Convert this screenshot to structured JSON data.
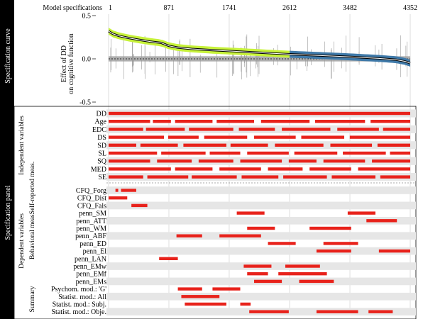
{
  "sidebar": {
    "top": "Specification curve",
    "bottom": "Specification panel"
  },
  "curve": {
    "top_axis_label": "Model specifications",
    "top_ticks": [
      "1",
      "871",
      "1741",
      "2612",
      "3482",
      "4352"
    ],
    "y_axis_label_line1": "Effect of DD",
    "y_axis_label_line2": "on cognitive function",
    "y_ticks": [
      "0.5",
      "0.0",
      "-0.5"
    ]
  },
  "panel": {
    "group_independent": "Independent variables",
    "group_dependent": "Dependent variables",
    "sub_selfreport": "Self-reported meas.",
    "sub_behavioral": "Behavioral meas.",
    "sub_summary": "Summary",
    "independent_labels": [
      "DD",
      "Age",
      "EDC",
      "DS",
      "SD",
      "SL",
      "SQ",
      "MED",
      "SE"
    ],
    "dependent_labels": [
      "CFQ_Forg",
      "CFQ_Dist",
      "CFQ_Fals",
      "penn_SM",
      "penn_ATT",
      "penn_WM",
      "penn_ABF",
      "penn_ED",
      "penn_El",
      "penn_LAN",
      "penn_EMw",
      "penn_EMf",
      "penn_EMs",
      "Psychom. mod.: 'G'",
      "Statist. mod.: All",
      "Statist. mod.: Subj.",
      "Statist. mod.: Obje."
    ]
  },
  "colors": {
    "marker": "#e8221b",
    "band_light": "#c7f23a",
    "band_dark": "#3f79a8",
    "null_band": "#a6a6a6",
    "sidebar": "#000000"
  },
  "chart_data": {
    "type": "line",
    "x_range": [
      1,
      4352
    ],
    "ylim": [
      -0.5,
      0.5
    ],
    "curve_x": [
      1,
      60,
      150,
      300,
      440,
      600,
      760,
      870,
      1000,
      1200,
      1500,
      1800,
      2100,
      2400,
      2700,
      3000,
      3300,
      3600,
      3900,
      4150,
      4280,
      4352
    ],
    "curve_y": [
      0.32,
      0.29,
      0.265,
      0.24,
      0.22,
      0.2,
      0.185,
      0.15,
      0.13,
      0.115,
      0.1,
      0.088,
      0.075,
      0.062,
      0.05,
      0.04,
      0.03,
      0.018,
      0.005,
      -0.01,
      -0.03,
      -0.05
    ],
    "ci_halfwidth": 0.04,
    "null_halfwidth": 0.03,
    "significance_switch_x": 2612,
    "independent_segments": [
      [
        [
          1,
          4352
        ]
      ],
      [
        [
          1,
          600
        ],
        [
          640,
          900
        ],
        [
          960,
          1500
        ],
        [
          1560,
          2100
        ],
        [
          2200,
          2900
        ],
        [
          2980,
          3700
        ],
        [
          3780,
          4352
        ]
      ],
      [
        [
          1,
          500
        ],
        [
          540,
          1100
        ],
        [
          1160,
          1800
        ],
        [
          1880,
          2400
        ],
        [
          2500,
          3200
        ],
        [
          3300,
          3900
        ],
        [
          3960,
          4352
        ]
      ],
      [
        [
          1,
          800
        ],
        [
          860,
          1300
        ],
        [
          1380,
          2000
        ],
        [
          2100,
          2700
        ],
        [
          2780,
          3400
        ],
        [
          3480,
          4352
        ]
      ],
      [
        [
          1,
          400
        ],
        [
          460,
          1000
        ],
        [
          1080,
          1700
        ],
        [
          1760,
          2300
        ],
        [
          2400,
          3100
        ],
        [
          3200,
          3800
        ],
        [
          3880,
          4352
        ]
      ],
      [
        [
          1,
          700
        ],
        [
          760,
          1400
        ],
        [
          1460,
          1900
        ],
        [
          2000,
          2600
        ],
        [
          2680,
          3300
        ],
        [
          3380,
          4000
        ],
        [
          4060,
          4352
        ]
      ],
      [
        [
          1,
          600
        ],
        [
          700,
          1200
        ],
        [
          1300,
          1800
        ],
        [
          1900,
          2500
        ],
        [
          2600,
          3000
        ],
        [
          3100,
          3700
        ],
        [
          3800,
          4352
        ]
      ],
      [
        [
          1,
          900
        ],
        [
          960,
          1500
        ],
        [
          1600,
          2200
        ],
        [
          2300,
          2800
        ],
        [
          2900,
          3500
        ],
        [
          3600,
          4352
        ]
      ],
      [
        [
          1,
          500
        ],
        [
          560,
          1150
        ],
        [
          1200,
          1850
        ],
        [
          1920,
          2450
        ],
        [
          2520,
          3150
        ],
        [
          3220,
          3850
        ],
        [
          3920,
          4352
        ]
      ]
    ],
    "dependent_segments": [
      [
        [
          100,
          140
        ],
        [
          180,
          400
        ]
      ],
      [
        [
          1,
          270
        ]
      ],
      [
        [
          330,
          560
        ]
      ],
      [
        [
          1850,
          2250
        ],
        [
          3450,
          3850
        ]
      ],
      [
        [
          3720,
          4160
        ]
      ],
      [
        [
          2000,
          2400
        ],
        [
          2900,
          3500
        ]
      ],
      [
        [
          980,
          1350
        ],
        [
          1600,
          2200
        ]
      ],
      [
        [
          2300,
          2700
        ],
        [
          3100,
          3600
        ]
      ],
      [
        [
          3000,
          3500
        ],
        [
          3900,
          4352
        ]
      ],
      [
        [
          730,
          1000
        ]
      ],
      [
        [
          1950,
          2350
        ],
        [
          2550,
          3050
        ]
      ],
      [
        [
          2000,
          2300
        ],
        [
          2450,
          3150
        ]
      ],
      [
        [
          2100,
          2500
        ],
        [
          2750,
          3250
        ]
      ],
      [
        [
          1000,
          1350
        ],
        [
          1500,
          1900
        ]
      ],
      [
        [
          1050,
          1600
        ]
      ],
      [
        [
          1100,
          1700
        ],
        [
          1900,
          2050
        ]
      ],
      [
        [
          2030,
          2600
        ],
        [
          3000,
          3600
        ],
        [
          3750,
          4100
        ]
      ]
    ]
  }
}
